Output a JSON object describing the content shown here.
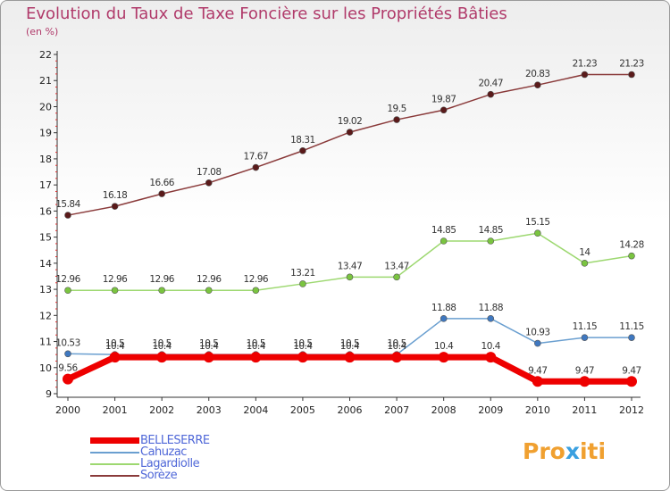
{
  "title": "Evolution du Taux de Taxe Foncière sur les Propriétés Bâties",
  "subtitle": "(en %)",
  "logo": {
    "prefix": "Pro",
    "x": "x",
    "suffix": "iti"
  },
  "chart_data": {
    "type": "line",
    "title": "Evolution du Taux de Taxe Foncière sur les Propriétés Bâties",
    "ylabel": "(en %)",
    "xlabel": "",
    "x": [
      "2000",
      "2001",
      "2002",
      "2003",
      "2004",
      "2005",
      "2006",
      "2007",
      "2008",
      "2009",
      "2010",
      "2011",
      "2012"
    ],
    "ylim": [
      9,
      22
    ],
    "yticks": [
      9,
      10,
      11,
      12,
      13,
      14,
      15,
      16,
      17,
      18,
      19,
      20,
      21,
      22
    ],
    "grid": false,
    "legend_position": "bottom-left",
    "series": [
      {
        "name": "BELLESERRE",
        "color": "#ee0000",
        "point_color": "#ee0000",
        "values": [
          9.56,
          10.4,
          10.4,
          10.4,
          10.4,
          10.4,
          10.4,
          10.4,
          10.4,
          10.4,
          9.47,
          9.47,
          9.47
        ],
        "labels": [
          "9.56",
          "10.4",
          "10.4",
          "10.4",
          "10.4",
          "10.4",
          "10.4",
          "10.4",
          "10.4",
          "10.4",
          "9.47",
          "9.47",
          "9.47"
        ]
      },
      {
        "name": "Cahuzac",
        "color": "#6a9fd0",
        "point_color": "#3f78c0",
        "values": [
          10.53,
          10.5,
          10.5,
          10.5,
          10.5,
          10.5,
          10.5,
          10.5,
          11.88,
          11.88,
          10.93,
          11.15,
          11.15
        ],
        "labels": [
          "10.53",
          "10.5",
          "10.5",
          "10.5",
          "10.5",
          "10.5",
          "10.5",
          "10.5",
          "11.88",
          "11.88",
          "10.93",
          "11.15",
          "11.15"
        ]
      },
      {
        "name": "Lagardiolle",
        "color": "#9dd870",
        "point_color": "#7ac440",
        "values": [
          12.96,
          12.96,
          12.96,
          12.96,
          12.96,
          13.21,
          13.47,
          13.47,
          14.85,
          14.85,
          15.15,
          14,
          14.28
        ],
        "labels": [
          "12.96",
          "12.96",
          "12.96",
          "12.96",
          "12.96",
          "13.21",
          "13.47",
          "13.47",
          "14.85",
          "14.85",
          "15.15",
          "14",
          "14.28"
        ]
      },
      {
        "name": "Sorèze",
        "color": "#8a3a3a",
        "point_color": "#5a1a1a",
        "values": [
          15.84,
          16.18,
          16.66,
          17.08,
          17.67,
          18.31,
          19.02,
          19.5,
          19.87,
          20.47,
          20.83,
          21.23,
          21.23
        ],
        "labels": [
          "15.84",
          "16.18",
          "16.66",
          "17.08",
          "17.67",
          "18.31",
          "19.02",
          "19.5",
          "19.87",
          "20.47",
          "20.83",
          "21.23",
          "21.23"
        ]
      }
    ]
  }
}
